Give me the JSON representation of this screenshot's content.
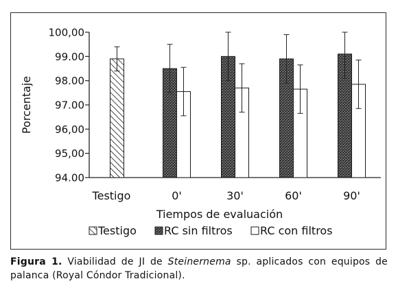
{
  "chart_data": {
    "type": "bar",
    "categories": [
      "Testigo",
      "0'",
      "30'",
      "60'",
      "90'"
    ],
    "series": [
      {
        "name": "Testigo",
        "pattern": "diagonal-hatch",
        "values": [
          98.9,
          null,
          null,
          null,
          null
        ],
        "errors": [
          0.5,
          null,
          null,
          null,
          null
        ]
      },
      {
        "name": "RC sin filtros",
        "pattern": "dark-stipple",
        "values": [
          null,
          98.5,
          99.0,
          98.9,
          99.1
        ],
        "errors": [
          null,
          1.0,
          1.0,
          1.0,
          1.0
        ]
      },
      {
        "name": "RC con filtros",
        "pattern": "white",
        "values": [
          null,
          97.55,
          97.7,
          97.65,
          97.85
        ],
        "errors": [
          null,
          1.0,
          1.0,
          1.0,
          1.0
        ]
      }
    ],
    "xlabel": "Tiempos de evaluación",
    "ylabel": "Porcentaje",
    "ylim": [
      94.0,
      100.0
    ],
    "yticks": [
      "94.00",
      "95,00",
      "96,00",
      "97.00",
      "98.00",
      "99.00",
      "100,00"
    ],
    "grid": false,
    "legend_position": "bottom"
  },
  "caption": {
    "label": "Figura 1.",
    "text_before": " Viabilidad de JI de ",
    "italic": "Steinernema",
    "text_after": " sp. aplicados con equipos de palanca (Royal Cóndor Tradicional)."
  },
  "colors": {
    "frame": "#2a2a2a",
    "axis": "#222222",
    "stipple_dark": "#3a3a3a",
    "stipple_light": "#9a9a9a"
  }
}
